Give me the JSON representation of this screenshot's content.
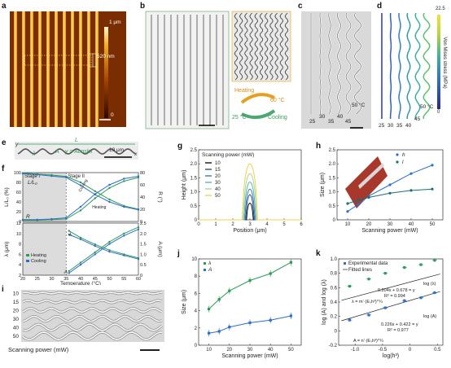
{
  "colors": {
    "afm_dark": "#7a2d00",
    "afm_bright": "#f0b020",
    "blue": "#2f6fc6",
    "green": "#2e9a5a",
    "teal_dark": "#1d6e72",
    "grey_bg": "#dcdcdc"
  },
  "panel_a": {
    "label": "a",
    "colorbar_max": "1 μm",
    "colorbar_min": "0",
    "period_label": "520 nm"
  },
  "panel_b": {
    "label": "b",
    "heating": "Heating",
    "cooling": "Cooling",
    "temp_high": "60 °C",
    "temp_low": "25 °C"
  },
  "panel_c": {
    "label": "c",
    "temps_bottom": [
      "25",
      "30",
      "35",
      "40",
      "45"
    ],
    "temp_top": "50 °C"
  },
  "panel_d": {
    "label": "d",
    "temps_bottom": [
      "25",
      "30",
      "35",
      "40",
      "45"
    ],
    "temp_top": "50 °C",
    "colorbar_title": "Von Mises stress (MPa)",
    "colorbar_max": "22.5",
    "colorbar_min": "0"
  },
  "panel_e": {
    "label": "e",
    "y_axis": "y",
    "x_axis": "x",
    "L": "L",
    "lambda": "λ",
    "A": "A",
    "equation": "y = Acoskx",
    "scale": "10 μm"
  },
  "panel_f": {
    "label": "f",
    "stage1": "Stage I",
    "stage2": "Stage II",
    "ylabel_top_left": "L/L₀ (%)",
    "ylabel_top_right": "R (°)",
    "ylabel_bottom_left": "λ (μm)",
    "ylabel_bottom_right": "A (μm)",
    "xlabel": "Temperature (°C)",
    "legend_heating": "Heating",
    "legend_cooling": "Cooling",
    "curve_LL0": "L/L₀",
    "curve_R": "R",
    "curve_lambda": "λ",
    "curve_A": "A",
    "annot_cooling": "Cooling",
    "annot_heating": "Heating",
    "x_ticks": [
      "20",
      "25",
      "30",
      "35",
      "40",
      "45",
      "50",
      "55",
      "60"
    ],
    "top_left_ticks": [
      "100",
      "80",
      "60",
      "40",
      "20",
      "0"
    ],
    "top_right_ticks": [
      "80",
      "60",
      "40",
      "20",
      "0"
    ],
    "bot_left_ticks": [
      "12",
      "10",
      "8",
      "6",
      "4",
      "2"
    ],
    "bot_right_ticks": [
      "2.5",
      "2.0",
      "1.5",
      "1.0",
      "0.5",
      "0"
    ]
  },
  "panel_g": {
    "label": "g",
    "legend_title": "Scanning power (mW)",
    "xlabel": "Position (μm)",
    "ylabel": "Height (μm)",
    "x_ticks": [
      "0",
      "1",
      "2",
      "3",
      "4",
      "5",
      "6"
    ],
    "y_ticks": [
      "0",
      "0.5",
      "1.0",
      "1.5",
      "2.0",
      "2.5"
    ],
    "series_names": [
      "10",
      "15",
      "20",
      "30",
      "40",
      "50"
    ],
    "series_colors": [
      "#111111",
      "#2a4f8a",
      "#2f7fbf",
      "#5fb3b3",
      "#a8d8a0",
      "#f2d245"
    ]
  },
  "panel_h": {
    "label": "h",
    "xlabel": "Scanning power (mW)",
    "ylabel": "Size (μm)",
    "legend_h": "h",
    "legend_l": "l",
    "x_ticks": [
      "10",
      "20",
      "30",
      "40",
      "50"
    ],
    "y_ticks": [
      "0",
      "0.5",
      "1.0",
      "1.5",
      "2.0",
      "2.5"
    ]
  },
  "panel_i": {
    "label": "i",
    "rows": [
      "10",
      "15",
      "20",
      "30",
      "40",
      "50"
    ],
    "xlabel": "Scanning power (mW)"
  },
  "panel_j": {
    "label": "j",
    "xlabel": "Scanning power (mW)",
    "ylabel": "Size (μm)",
    "legend_lambda": "λ",
    "legend_A": "A",
    "x_ticks": [
      "10",
      "20",
      "30",
      "40",
      "50"
    ],
    "y_ticks": [
      "0",
      "2",
      "4",
      "6",
      "8",
      "10"
    ]
  },
  "panel_k": {
    "label": "k",
    "xlabel": "log(h³)",
    "ylabel": "log (A) and log (λ)",
    "legend_exp": "Experimental data",
    "legend_fit": "Fitted lines",
    "eq_lambda_fit": "0.204x + 0.678 = y",
    "eq_lambda_r2": "R² = 0.994",
    "eq_lambda_law": "λ = m'·(Eₛh³)^¼",
    "log_lambda": "log (λ)",
    "eq_A_fit": "0.226x + 0.422 = y",
    "eq_A_r2": "R² = 0.977",
    "eq_A_law": "A = n'·(Eₛh³)^¼",
    "log_A": "log (A)",
    "x_ticks": [
      "-1.0",
      "-0.5",
      "0",
      "0.5"
    ],
    "y_ticks": [
      "1.0",
      "0.8",
      "0.6",
      "0.4",
      "0.2",
      "0",
      "-0.2"
    ]
  },
  "chart_data": [
    {
      "id": "f_top",
      "type": "line",
      "x": [
        20,
        25,
        30,
        35,
        40,
        45,
        50,
        55,
        60
      ],
      "series": [
        {
          "name": "L/L₀ heating",
          "values": [
            99,
            97,
            95,
            92,
            80,
            62,
            45,
            32,
            25
          ]
        },
        {
          "name": "L/L₀ cooling",
          "values": [
            98,
            96,
            93,
            90,
            74,
            55,
            40,
            30,
            24
          ]
        },
        {
          "name": "R heating",
          "values": [
            2,
            2,
            3,
            4,
            18,
            38,
            55,
            66,
            72
          ]
        },
        {
          "name": "R cooling",
          "values": [
            3,
            3,
            4,
            6,
            24,
            45,
            60,
            70,
            74
          ]
        }
      ],
      "ylim_left": [
        0,
        100
      ],
      "ylim_right": [
        0,
        80
      ]
    },
    {
      "id": "f_bottom",
      "type": "line",
      "x": [
        36,
        40,
        45,
        50,
        55,
        60
      ],
      "series": [
        {
          "name": "λ heating",
          "values": [
            10.5,
            9.2,
            7.9,
            6.8,
            6.0,
            5.3
          ]
        },
        {
          "name": "λ cooling",
          "values": [
            9.8,
            8.9,
            7.6,
            6.5,
            5.8,
            5.1
          ]
        },
        {
          "name": "A heating",
          "values": [
            0.2,
            0.6,
            1.1,
            1.6,
            2.0,
            2.3
          ]
        },
        {
          "name": "A cooling",
          "values": [
            0.1,
            0.5,
            1.0,
            1.5,
            1.9,
            2.2
          ]
        }
      ],
      "ylim_left": [
        2,
        12
      ],
      "ylim_right": [
        0,
        2.5
      ]
    },
    {
      "id": "g",
      "type": "line",
      "x_center": 3.0,
      "series": [
        {
          "name": "10",
          "height": 0.6,
          "halfwidth": 0.18
        },
        {
          "name": "15",
          "height": 0.9,
          "halfwidth": 0.22
        },
        {
          "name": "20",
          "height": 1.1,
          "halfwidth": 0.27
        },
        {
          "name": "30",
          "height": 1.35,
          "halfwidth": 0.32
        },
        {
          "name": "40",
          "height": 1.65,
          "halfwidth": 0.37
        },
        {
          "name": "50",
          "height": 2.0,
          "halfwidth": 0.42
        }
      ],
      "xlim": [
        0,
        6
      ],
      "ylim": [
        0,
        2.5
      ]
    },
    {
      "id": "h",
      "type": "line",
      "x": [
        10,
        15,
        20,
        30,
        40,
        50
      ],
      "series": [
        {
          "name": "h",
          "values": [
            0.3,
            0.55,
            0.85,
            1.25,
            1.65,
            1.95
          ]
        },
        {
          "name": "l",
          "values": [
            0.58,
            0.7,
            0.8,
            0.95,
            1.05,
            1.1
          ]
        }
      ],
      "ylim": [
        0,
        2.5
      ]
    },
    {
      "id": "j",
      "type": "line",
      "x": [
        10,
        15,
        20,
        30,
        40,
        50
      ],
      "series": [
        {
          "name": "λ",
          "values": [
            4.2,
            5.3,
            6.3,
            7.5,
            8.3,
            9.6
          ]
        },
        {
          "name": "A",
          "values": [
            1.4,
            1.6,
            2.1,
            2.6,
            2.9,
            3.4
          ]
        }
      ],
      "ylim": [
        0,
        10
      ]
    },
    {
      "id": "k",
      "type": "scatter",
      "x": [
        -1.1,
        -0.75,
        -0.45,
        -0.1,
        0.2,
        0.45
      ],
      "series": [
        {
          "name": "log (λ)",
          "values": [
            0.62,
            0.72,
            0.8,
            0.88,
            0.92,
            0.98
          ]
        },
        {
          "name": "log (A)",
          "values": [
            0.15,
            0.22,
            0.32,
            0.42,
            0.46,
            0.53
          ]
        }
      ],
      "xlim": [
        -1.3,
        0.6
      ],
      "ylim": [
        -0.2,
        1.0
      ]
    }
  ]
}
